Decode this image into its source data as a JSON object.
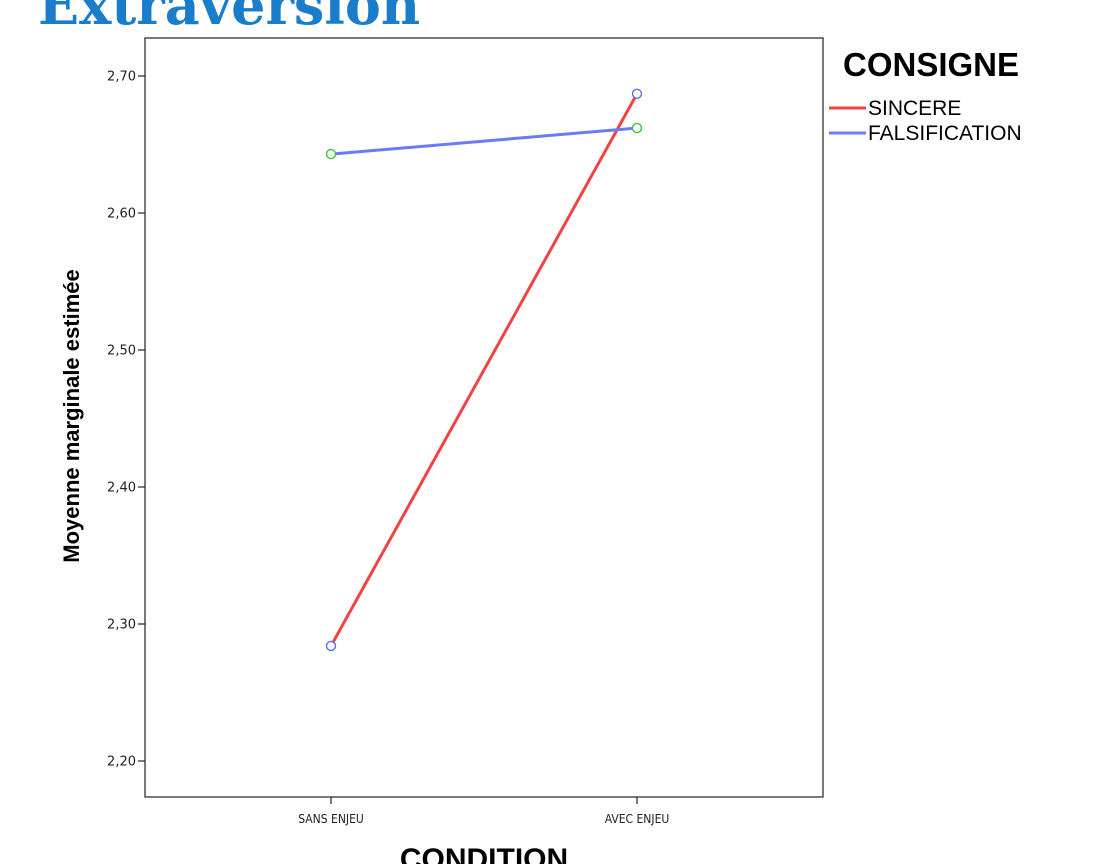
{
  "title": "Extraversion",
  "chart_data": {
    "type": "line",
    "categories": [
      "SANS ENJEU",
      "AVEC ENJEU"
    ],
    "series": [
      {
        "name": "SINCERE",
        "values": [
          2.284,
          2.687
        ],
        "color": "#f04444",
        "marker_color": "#5b6fe0"
      },
      {
        "name": "FALSIFICATION",
        "values": [
          2.643,
          2.662
        ],
        "color": "#6b7bf5",
        "marker_color": "#3cc03c"
      }
    ],
    "xlabel": "CONDITION",
    "ylabel": "Moyenne marginale estimée",
    "ylim": [
      2.17,
      2.725
    ],
    "yticks": [
      2.2,
      2.3,
      2.4,
      2.5,
      2.6,
      2.7
    ],
    "ytick_labels": [
      "2,20",
      "2,30",
      "2,40",
      "2,50",
      "2,60",
      "2,70"
    ],
    "legend_title": "CONSIGNE",
    "legend_position": "top-right",
    "grid": false
  }
}
